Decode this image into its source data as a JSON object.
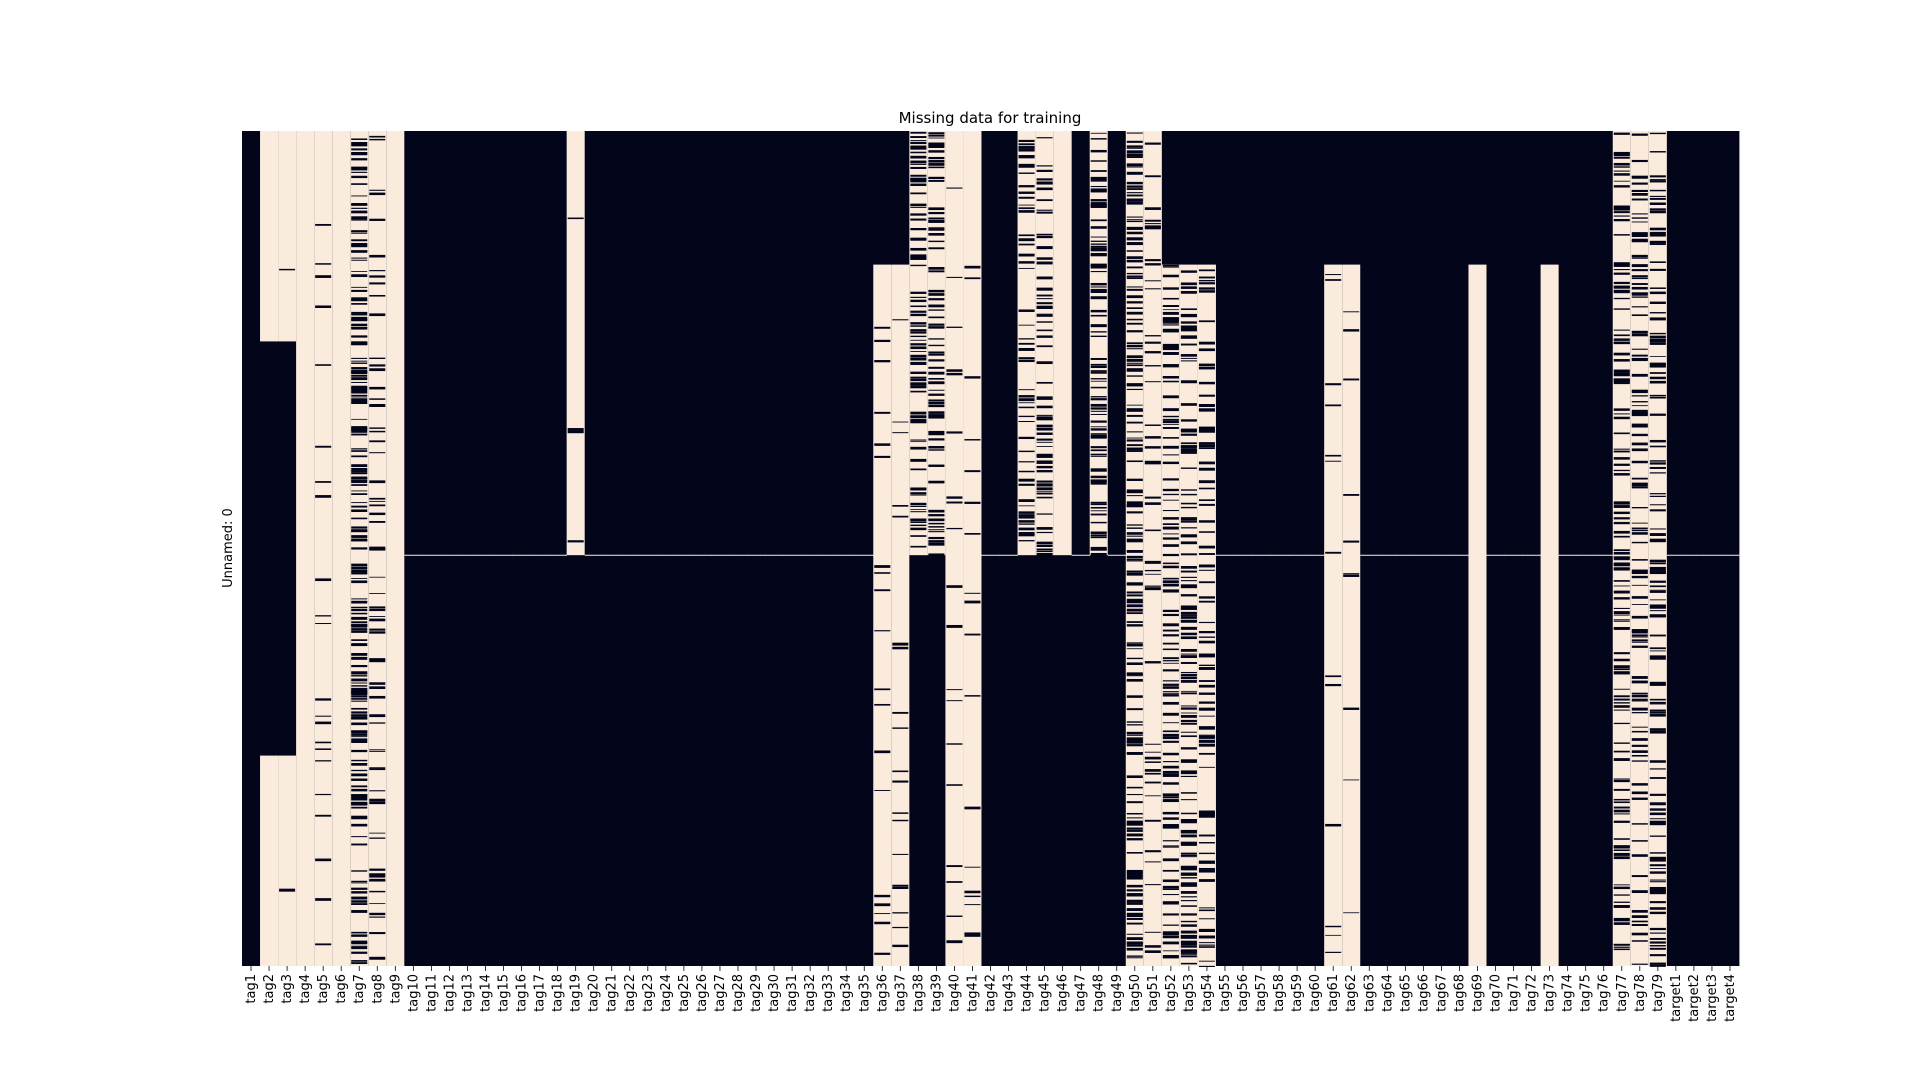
{
  "chart_data": {
    "type": "heatmap",
    "title": "Missing data for training",
    "xlabel": "",
    "ylabel": "Unnamed: 0",
    "colors": {
      "present": "#03051a",
      "missing": "#faebdd"
    },
    "n_rows": 1000,
    "columns": [
      {
        "name": "tag1",
        "missing": []
      },
      {
        "name": "tag2",
        "missing": [
          [
            0,
            252
          ],
          [
            748,
            1000
          ]
        ]
      },
      {
        "name": "tag3",
        "missing": [
          [
            0,
            252
          ],
          [
            748,
            1000
          ]
        ]
      },
      {
        "name": "tag4",
        "missing": [
          [
            0,
            1000
          ]
        ]
      },
      {
        "name": "tag5",
        "missing": [
          [
            0,
            1000
          ]
        ]
      },
      {
        "name": "tag6",
        "missing": [
          [
            0,
            1000
          ]
        ]
      },
      {
        "name": "tag7",
        "missing": [
          [
            0,
            1000
          ]
        ]
      },
      {
        "name": "tag8",
        "missing": [
          [
            0,
            1000
          ]
        ]
      },
      {
        "name": "tag9",
        "missing": [
          [
            0,
            1000
          ]
        ]
      },
      {
        "name": "tag10",
        "missing": []
      },
      {
        "name": "tag11",
        "missing": []
      },
      {
        "name": "tag12",
        "missing": []
      },
      {
        "name": "tag13",
        "missing": []
      },
      {
        "name": "tag14",
        "missing": []
      },
      {
        "name": "tag15",
        "missing": []
      },
      {
        "name": "tag16",
        "missing": []
      },
      {
        "name": "tag17",
        "missing": []
      },
      {
        "name": "tag18",
        "missing": []
      },
      {
        "name": "tag19",
        "missing": [
          [
            0,
            508
          ]
        ]
      },
      {
        "name": "tag20",
        "missing": []
      },
      {
        "name": "tag21",
        "missing": []
      },
      {
        "name": "tag22",
        "missing": []
      },
      {
        "name": "tag23",
        "missing": []
      },
      {
        "name": "tag24",
        "missing": []
      },
      {
        "name": "tag25",
        "missing": []
      },
      {
        "name": "tag26",
        "missing": []
      },
      {
        "name": "tag27",
        "missing": []
      },
      {
        "name": "tag28",
        "missing": []
      },
      {
        "name": "tag29",
        "missing": []
      },
      {
        "name": "tag30",
        "missing": []
      },
      {
        "name": "tag31",
        "missing": []
      },
      {
        "name": "tag32",
        "missing": []
      },
      {
        "name": "tag33",
        "missing": []
      },
      {
        "name": "tag34",
        "missing": []
      },
      {
        "name": "tag35",
        "missing": []
      },
      {
        "name": "tag36",
        "missing": [
          [
            160,
            1000
          ]
        ]
      },
      {
        "name": "tag37",
        "missing": [
          [
            160,
            1000
          ]
        ]
      },
      {
        "name": "tag38",
        "missing": [
          [
            0,
            508
          ]
        ]
      },
      {
        "name": "tag39",
        "missing": [
          [
            0,
            508
          ]
        ]
      },
      {
        "name": "tag40",
        "missing": [
          [
            0,
            1000
          ]
        ]
      },
      {
        "name": "tag41",
        "missing": [
          [
            0,
            1000
          ]
        ]
      },
      {
        "name": "tag42",
        "missing": []
      },
      {
        "name": "tag43",
        "missing": []
      },
      {
        "name": "tag44",
        "missing": [
          [
            0,
            508
          ]
        ]
      },
      {
        "name": "tag45",
        "missing": [
          [
            0,
            508
          ]
        ]
      },
      {
        "name": "tag46",
        "missing": [
          [
            0,
            508
          ]
        ]
      },
      {
        "name": "tag47",
        "missing": []
      },
      {
        "name": "tag48",
        "missing": [
          [
            0,
            508
          ]
        ]
      },
      {
        "name": "tag49",
        "missing": []
      },
      {
        "name": "tag50",
        "missing": [
          [
            0,
            1000
          ]
        ]
      },
      {
        "name": "tag51",
        "missing": [
          [
            0,
            1000
          ]
        ]
      },
      {
        "name": "tag52",
        "missing": [
          [
            160,
            1000
          ]
        ]
      },
      {
        "name": "tag53",
        "missing": [
          [
            160,
            1000
          ]
        ]
      },
      {
        "name": "tag54",
        "missing": [
          [
            160,
            1000
          ]
        ]
      },
      {
        "name": "tag55",
        "missing": []
      },
      {
        "name": "tag56",
        "missing": []
      },
      {
        "name": "tag57",
        "missing": []
      },
      {
        "name": "tag58",
        "missing": []
      },
      {
        "name": "tag59",
        "missing": []
      },
      {
        "name": "tag60",
        "missing": []
      },
      {
        "name": "tag61",
        "missing": [
          [
            160,
            1000
          ]
        ]
      },
      {
        "name": "tag62",
        "missing": [
          [
            160,
            1000
          ]
        ]
      },
      {
        "name": "tag63",
        "missing": []
      },
      {
        "name": "tag64",
        "missing": []
      },
      {
        "name": "tag65",
        "missing": []
      },
      {
        "name": "tag66",
        "missing": []
      },
      {
        "name": "tag67",
        "missing": []
      },
      {
        "name": "tag68",
        "missing": []
      },
      {
        "name": "tag69",
        "missing": [
          [
            160,
            1000
          ]
        ]
      },
      {
        "name": "tag70",
        "missing": []
      },
      {
        "name": "tag71",
        "missing": []
      },
      {
        "name": "tag72",
        "missing": []
      },
      {
        "name": "tag73",
        "missing": [
          [
            160,
            1000
          ]
        ]
      },
      {
        "name": "tag74",
        "missing": []
      },
      {
        "name": "tag75",
        "missing": []
      },
      {
        "name": "tag76",
        "missing": []
      },
      {
        "name": "tag77",
        "missing": [
          [
            0,
            1000
          ]
        ]
      },
      {
        "name": "tag78",
        "missing": [
          [
            0,
            1000
          ]
        ]
      },
      {
        "name": "tag79",
        "missing": [
          [
            0,
            1000
          ]
        ]
      },
      {
        "name": "target1",
        "missing": []
      },
      {
        "name": "target2",
        "missing": []
      },
      {
        "name": "target3",
        "missing": []
      },
      {
        "name": "target4",
        "missing": []
      }
    ]
  }
}
